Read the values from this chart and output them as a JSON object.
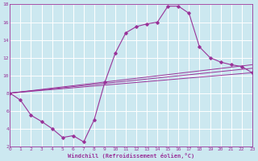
{
  "xlabel": "Windchill (Refroidissement éolien,°C)",
  "ylabel": "",
  "bg_color": "#cce8f0",
  "grid_color": "#ffffff",
  "line_color": "#993399",
  "xlim": [
    0,
    23
  ],
  "ylim": [
    2,
    18
  ],
  "xticks": [
    0,
    1,
    2,
    3,
    4,
    5,
    6,
    7,
    8,
    9,
    10,
    11,
    12,
    13,
    14,
    15,
    16,
    17,
    18,
    19,
    20,
    21,
    22,
    23
  ],
  "yticks": [
    2,
    4,
    6,
    8,
    10,
    12,
    14,
    16,
    18
  ],
  "line1_x": [
    0,
    1,
    2,
    3,
    4,
    5,
    6,
    7,
    8,
    9,
    10,
    11,
    12,
    13,
    14,
    15,
    16,
    17,
    18,
    19,
    20,
    21,
    22,
    23
  ],
  "line1_y": [
    8.0,
    7.2,
    5.5,
    4.8,
    4.0,
    3.0,
    3.2,
    2.5,
    5.0,
    9.2,
    12.5,
    14.8,
    15.5,
    15.8,
    16.0,
    17.8,
    17.8,
    17.0,
    13.2,
    12.0,
    11.5,
    11.2,
    11.0,
    10.3
  ],
  "line2_x": [
    0,
    23
  ],
  "line2_y": [
    8.0,
    10.3
  ],
  "line3_x": [
    0,
    23
  ],
  "line3_y": [
    8.0,
    10.8
  ],
  "line4_x": [
    0,
    23
  ],
  "line4_y": [
    8.0,
    11.2
  ]
}
